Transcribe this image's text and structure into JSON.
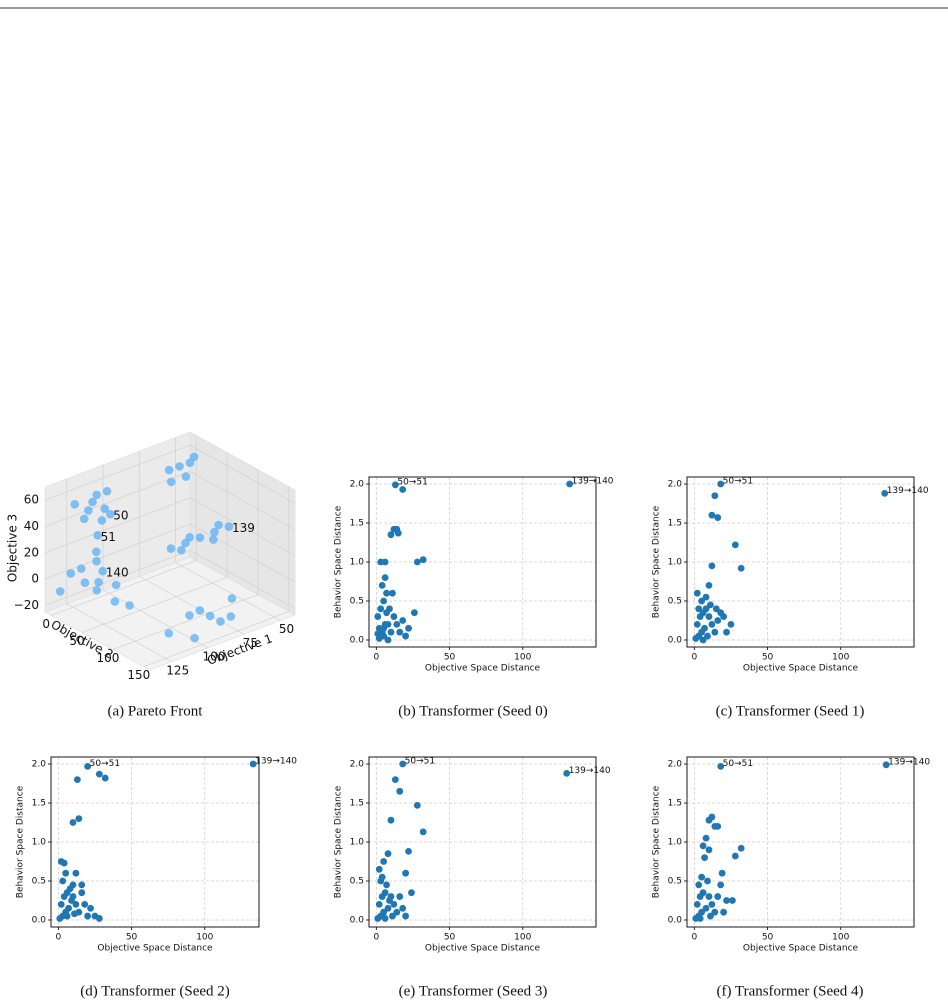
{
  "chart_data": [
    {
      "type": "scatter3d",
      "caption": "(a) Pareto Front",
      "xlabel": "Objective 1",
      "ylabel": "Objective 2",
      "zlabel": "Objective 3",
      "color": "#5aaff5",
      "x": [
        120,
        125,
        115,
        130,
        118,
        110,
        128,
        122,
        112,
        60,
        55,
        65,
        70,
        50,
        62,
        100,
        90,
        80,
        70,
        60,
        95,
        85,
        75,
        65,
        125,
        130,
        128,
        130,
        135,
        125,
        132,
        128,
        120,
        138,
        90,
        85,
        95,
        80,
        100,
        110,
        105,
        75,
        135,
        138,
        132
      ],
      "y": [
        20,
        25,
        15,
        30,
        35,
        20,
        10,
        40,
        30,
        20,
        25,
        15,
        30,
        20,
        35,
        100,
        100,
        100,
        100,
        100,
        105,
        95,
        110,
        95,
        40,
        50,
        45,
        60,
        65,
        70,
        55,
        75,
        80,
        50,
        140,
        145,
        135,
        150,
        130,
        120,
        150,
        140,
        20,
        10,
        30
      ],
      "z": [
        58,
        55,
        60,
        52,
        56,
        62,
        57,
        50,
        48,
        60,
        62,
        58,
        55,
        63,
        57,
        35,
        35,
        35,
        35,
        35,
        33,
        36,
        34,
        37,
        40,
        25,
        30,
        20,
        15,
        10,
        5,
        0,
        -5,
        12,
        -10,
        -15,
        -5,
        -12,
        -8,
        -20,
        -18,
        -3,
        10,
        -5,
        15
      ],
      "xlim": [
        40,
        140
      ],
      "ylim": [
        -10,
        160
      ],
      "zlim": [
        -25,
        70
      ],
      "xticks": [
        50,
        75,
        100,
        125
      ],
      "yticks": [
        0,
        50,
        100,
        150
      ],
      "zticks": [
        {
          "value": -20,
          "label": "−20"
        },
        0,
        20,
        40,
        60
      ],
      "annotations": [
        {
          "text": "50",
          "x": 112,
          "y": 30,
          "z": 48
        },
        {
          "text": "51",
          "x": 125,
          "y": 40,
          "z": 40
        },
        {
          "text": "139",
          "x": 60,
          "y": 100,
          "z": 35
        },
        {
          "text": "140",
          "x": 130,
          "y": 60,
          "z": 20
        }
      ]
    },
    {
      "type": "scatter",
      "caption": "(b) Transformer (Seed 0)",
      "xlabel": "Objective Space Distance",
      "ylabel": "Behavior Space Distance",
      "color": "#1f77b4",
      "grid": true,
      "x": [
        2,
        3,
        4,
        5,
        6,
        1,
        3,
        5,
        7,
        4,
        6,
        3,
        6,
        8,
        10,
        12,
        9,
        11,
        14,
        16,
        18,
        20,
        22,
        26,
        10,
        12,
        14,
        15,
        28,
        32,
        13,
        18,
        132,
        2,
        5,
        8,
        1,
        7
      ],
      "values": [
        0.02,
        0.05,
        0.1,
        0.15,
        0.2,
        0.3,
        0.4,
        0.5,
        0.6,
        0.7,
        0.8,
        1.0,
        1.0,
        0.2,
        0.1,
        0.3,
        0.4,
        0.6,
        0.2,
        0.1,
        0.25,
        0.05,
        0.15,
        0.35,
        1.35,
        1.42,
        1.42,
        1.37,
        1.0,
        1.03,
        1.99,
        1.93,
        2.0,
        0.15,
        0.05,
        0.0,
        0.08,
        0.35
      ],
      "xlim": [
        -5,
        150
      ],
      "ylim": [
        -0.09,
        2.09
      ],
      "xticks": [
        0,
        50,
        100
      ],
      "yticks": [
        {
          "value": 0,
          "label": "0.0"
        },
        0.5,
        {
          "value": 1,
          "label": "1.0"
        },
        1.5,
        {
          "value": 2,
          "label": "2.0"
        }
      ],
      "annotations": [
        {
          "text": "50→51",
          "x": 13,
          "y": 1.99
        },
        {
          "text": "139→140",
          "x": 132,
          "y": 2.0
        }
      ]
    },
    {
      "type": "scatter",
      "caption": "(c) Transformer (Seed 1)",
      "xlabel": "Objective Space Distance",
      "ylabel": "Behavior Space Distance",
      "color": "#1f77b4",
      "grid": true,
      "x": [
        1,
        3,
        5,
        2,
        4,
        6,
        8,
        10,
        12,
        14,
        3,
        7,
        9,
        16,
        18,
        20,
        22,
        25,
        8,
        10,
        12,
        12,
        16,
        14,
        18,
        28,
        32,
        130,
        2,
        5,
        11,
        6,
        15
      ],
      "values": [
        0.02,
        0.05,
        0.1,
        0.2,
        0.3,
        0.35,
        0.4,
        0.3,
        0.2,
        0.1,
        0.4,
        0.15,
        0.05,
        0.25,
        0.35,
        0.3,
        0.1,
        0.2,
        0.55,
        0.7,
        0.95,
        1.6,
        1.57,
        1.85,
        2.0,
        1.22,
        0.92,
        1.88,
        0.6,
        0.5,
        0.45,
        0.0,
        0.4
      ],
      "xlim": [
        -5,
        150
      ],
      "ylim": [
        -0.09,
        2.09
      ],
      "xticks": [
        0,
        50,
        100
      ],
      "yticks": [
        {
          "value": 0,
          "label": "0.0"
        },
        0.5,
        {
          "value": 1,
          "label": "1.0"
        },
        1.5,
        {
          "value": 2,
          "label": "2.0"
        }
      ],
      "annotations": [
        {
          "text": "50→51",
          "x": 18,
          "y": 2.0
        },
        {
          "text": "139→140",
          "x": 130,
          "y": 1.88
        }
      ]
    },
    {
      "type": "scatter",
      "caption": "(d) Transformer (Seed 2)",
      "xlabel": "Objective Space Distance",
      "ylabel": "Behavior Space Distance",
      "color": "#1f77b4",
      "grid": true,
      "x": [
        1,
        3,
        5,
        2,
        4,
        6,
        8,
        10,
        12,
        14,
        3,
        5,
        2,
        4,
        7,
        9,
        16,
        18,
        20,
        22,
        25,
        28,
        12,
        10,
        16,
        10,
        14,
        13,
        20,
        28,
        32,
        133,
        6,
        11
      ],
      "values": [
        0.02,
        0.05,
        0.1,
        0.2,
        0.3,
        0.35,
        0.4,
        0.3,
        0.2,
        0.1,
        0.5,
        0.6,
        0.75,
        0.73,
        0.15,
        0.25,
        0.35,
        0.2,
        0.05,
        0.15,
        0.05,
        0.02,
        0.6,
        0.45,
        0.45,
        1.25,
        1.3,
        1.8,
        1.97,
        1.87,
        1.82,
        2.0,
        0.05,
        0.08
      ],
      "xlim": [
        -5,
        137
      ],
      "ylim": [
        -0.09,
        2.09
      ],
      "xticks": [
        0,
        50,
        100
      ],
      "yticks": [
        {
          "value": 0,
          "label": "0.0"
        },
        0.5,
        {
          "value": 1,
          "label": "1.0"
        },
        1.5,
        {
          "value": 2,
          "label": "2.0"
        }
      ],
      "annotations": [
        {
          "text": "50→51",
          "x": 20,
          "y": 1.97
        },
        {
          "text": "139→140",
          "x": 133,
          "y": 2.0
        }
      ]
    },
    {
      "type": "scatter",
      "caption": "(e) Transformer (Seed 3)",
      "xlabel": "Objective Space Distance",
      "ylabel": "Behavior Space Distance",
      "color": "#1f77b4",
      "grid": true,
      "x": [
        1,
        3,
        5,
        2,
        4,
        6,
        8,
        10,
        12,
        14,
        3,
        2,
        4,
        7,
        9,
        16,
        18,
        20,
        24,
        20,
        8,
        22,
        10,
        13,
        16,
        18,
        28,
        32,
        130,
        6,
        11,
        5
      ],
      "values": [
        0.02,
        0.05,
        0.1,
        0.2,
        0.3,
        0.35,
        0.15,
        0.3,
        0.2,
        0.1,
        0.5,
        0.65,
        0.55,
        0.45,
        0.25,
        0.3,
        0.15,
        0.05,
        0.35,
        0.6,
        0.85,
        0.88,
        1.28,
        1.8,
        1.65,
        2.0,
        1.47,
        1.13,
        1.88,
        0.02,
        0.05,
        0.75
      ],
      "xlim": [
        -5,
        150
      ],
      "ylim": [
        -0.09,
        2.09
      ],
      "xticks": [
        0,
        50,
        100
      ],
      "yticks": [
        {
          "value": 0,
          "label": "0.0"
        },
        0.5,
        {
          "value": 1,
          "label": "1.0"
        },
        1.5,
        {
          "value": 2,
          "label": "2.0"
        }
      ],
      "annotations": [
        {
          "text": "50→51",
          "x": 18,
          "y": 2.0
        },
        {
          "text": "139→140",
          "x": 130,
          "y": 1.88
        }
      ]
    },
    {
      "type": "scatter",
      "caption": "(f) Transformer (Seed 4)",
      "xlabel": "Objective Space Distance",
      "ylabel": "Behavior Space Distance",
      "color": "#1f77b4",
      "grid": true,
      "x": [
        1,
        3,
        5,
        2,
        4,
        6,
        8,
        10,
        12,
        14,
        3,
        5,
        7,
        6,
        9,
        16,
        18,
        20,
        22,
        26,
        19,
        10,
        8,
        10,
        12,
        14,
        16,
        18,
        28,
        32,
        131,
        4,
        11
      ],
      "values": [
        0.02,
        0.05,
        0.1,
        0.2,
        0.3,
        0.35,
        0.15,
        0.3,
        0.2,
        0.1,
        0.45,
        0.55,
        0.8,
        0.95,
        0.5,
        0.3,
        0.45,
        0.1,
        0.25,
        0.25,
        0.6,
        0.9,
        1.05,
        1.28,
        1.32,
        1.2,
        1.2,
        1.97,
        0.82,
        0.92,
        1.99,
        0.02,
        0.05
      ],
      "xlim": [
        -5,
        150
      ],
      "ylim": [
        -0.09,
        2.09
      ],
      "xticks": [
        0,
        50,
        100
      ],
      "yticks": [
        {
          "value": 0,
          "label": "0.0"
        },
        0.5,
        {
          "value": 1,
          "label": "1.0"
        },
        1.5,
        {
          "value": 2,
          "label": "2.0"
        }
      ],
      "annotations": [
        {
          "text": "50→51",
          "x": 18,
          "y": 1.97
        },
        {
          "text": "139→140",
          "x": 131,
          "y": 1.99
        }
      ]
    }
  ]
}
